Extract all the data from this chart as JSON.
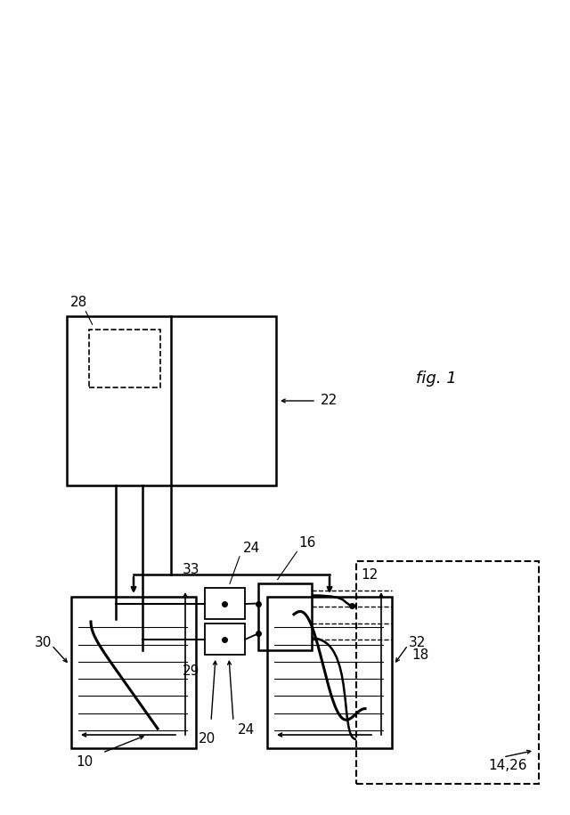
{
  "bg_color": "#ffffff",
  "line_color": "#000000",
  "fig_label": "fig. 1"
}
